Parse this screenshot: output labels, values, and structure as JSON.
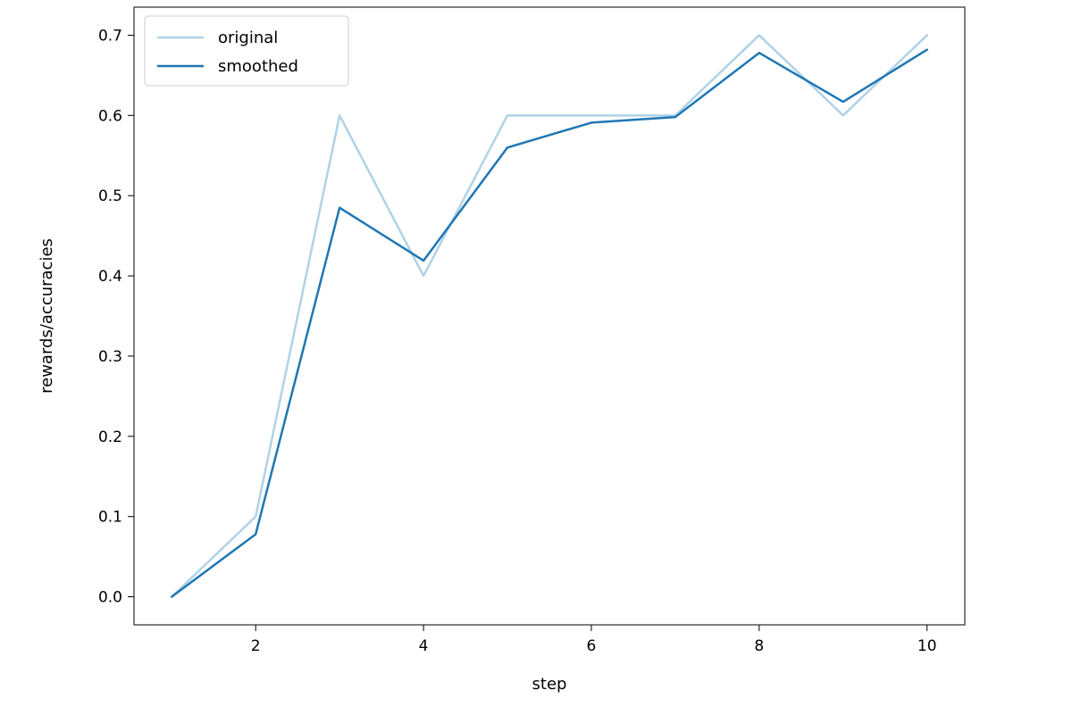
{
  "chart_data": {
    "type": "line",
    "title": "",
    "xlabel": "step",
    "ylabel": "rewards/accuracies",
    "x": [
      1,
      2,
      3,
      4,
      5,
      6,
      7,
      8,
      9,
      10
    ],
    "series": [
      {
        "name": "original",
        "color": "#b0d2e8",
        "values": [
          0.0,
          0.1,
          0.6,
          0.4,
          0.6,
          0.6,
          0.6,
          0.7,
          0.6,
          0.7
        ]
      },
      {
        "name": "smoothed",
        "color": "#1f77b4",
        "values": [
          0.0,
          0.078,
          0.485,
          0.419,
          0.56,
          0.591,
          0.598,
          0.678,
          0.617,
          0.682
        ]
      }
    ],
    "xlim": [
      0.55,
      10.45
    ],
    "ylim": [
      -0.035,
      0.735
    ],
    "xticks": [
      2,
      4,
      6,
      8,
      10
    ],
    "yticks": [
      0.0,
      0.1,
      0.2,
      0.3,
      0.4,
      0.5,
      0.6,
      0.7
    ],
    "legend_position": "upper left",
    "grid": false,
    "background_color": "#ffffff",
    "spine_color": "#000000"
  }
}
